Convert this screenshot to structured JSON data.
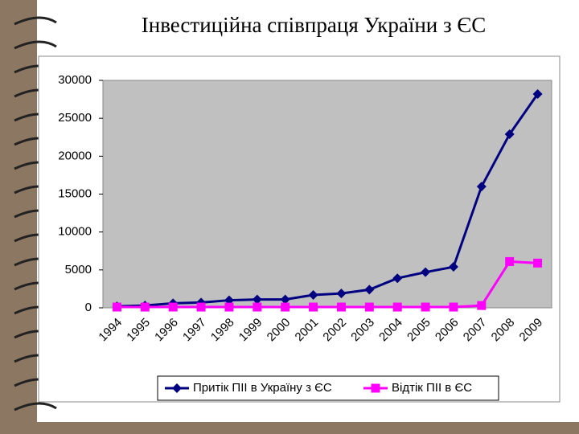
{
  "chart_data": {
    "type": "line",
    "title": "Інвестиційна співпраця України з ЄС",
    "categories": [
      "1994",
      "1995",
      "1996",
      "1997",
      "1998",
      "1999",
      "2000",
      "2001",
      "2002",
      "2003",
      "2004",
      "2005",
      "2006",
      "2007",
      "2008",
      "2009"
    ],
    "series": [
      {
        "name": "Притік ПІІ в Україну з ЄС",
        "color": "#000080",
        "marker": "diamond",
        "values": [
          200,
          300,
          600,
          700,
          1000,
          1100,
          1100,
          1700,
          1900,
          2400,
          3900,
          4700,
          5400,
          16000,
          22900,
          28200
        ]
      },
      {
        "name": "Відтік ПІІ в ЄС",
        "color": "#ff00ff",
        "marker": "square",
        "values": [
          100,
          100,
          100,
          100,
          100,
          100,
          100,
          100,
          100,
          100,
          100,
          100,
          100,
          300,
          6100,
          5900
        ]
      }
    ],
    "ylim": [
      0,
      30000
    ],
    "yticks": [
      0,
      5000,
      10000,
      15000,
      20000,
      25000,
      30000
    ],
    "legend": "bottom",
    "plot_background": "#c0c0c0"
  }
}
